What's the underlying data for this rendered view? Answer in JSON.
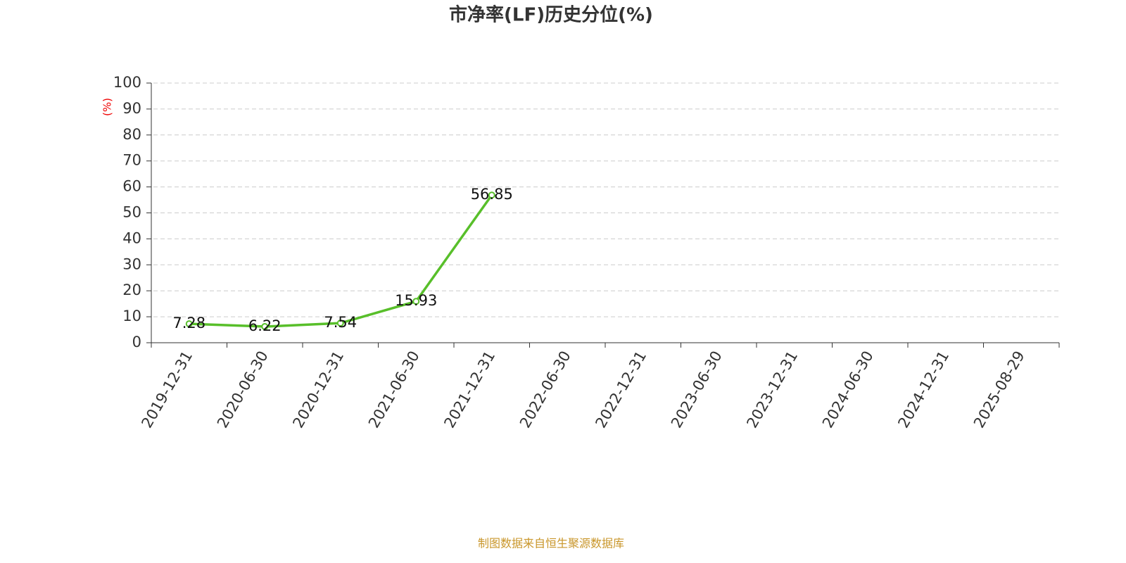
{
  "chart_data": {
    "type": "line",
    "title": "市净率(LF)历史分位(%)",
    "y_label": "(%)",
    "source": "制图数据来自恒生聚源数据库",
    "categories": [
      "2019-12-31",
      "2020-06-30",
      "2020-12-31",
      "2021-06-30",
      "2021-12-31",
      "2022-06-30",
      "2022-12-31",
      "2023-06-30",
      "2023-12-31",
      "2024-06-30",
      "2024-12-31",
      "2025-08-29"
    ],
    "series": [
      {
        "name": "市净率(LF)历史分位",
        "color": "#58bf2a",
        "values": [
          7.28,
          6.22,
          7.54,
          15.93,
          56.85,
          null,
          null,
          null,
          null,
          null,
          null,
          null
        ]
      }
    ],
    "ylim": [
      0,
      100
    ],
    "yticks": [
      0,
      10,
      20,
      30,
      40,
      50,
      60,
      70,
      80,
      90,
      100
    ],
    "grid": true
  }
}
